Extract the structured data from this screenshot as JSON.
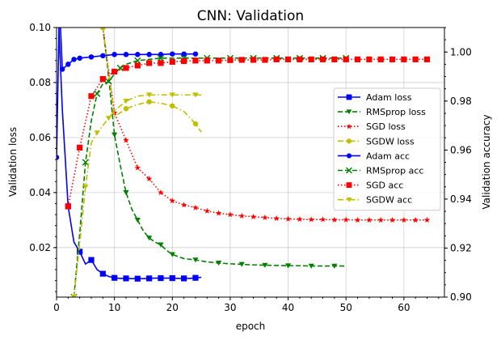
{
  "chart_data": {
    "type": "line",
    "title": "CNN: Validation",
    "xlabel": "epoch",
    "ylabel_left": "Validation loss",
    "ylabel_right": "Validation accuracy",
    "xlim": [
      0,
      67
    ],
    "ylim_left": [
      0.002,
      0.1
    ],
    "ylim_right": [
      0.9,
      1.01
    ],
    "xticks": [
      0,
      10,
      20,
      30,
      40,
      50,
      60
    ],
    "yticks_left": [
      0.02,
      0.04,
      0.06,
      0.08,
      0.1
    ],
    "yticks_left_labels": [
      "0.02",
      "0.04",
      "0.06",
      "0.08",
      "0.10"
    ],
    "yticks_right": [
      0.9,
      0.92,
      0.94,
      0.96,
      0.98,
      1.0
    ],
    "yticks_right_labels": [
      "0.90",
      "0.92",
      "0.94",
      "0.96",
      "0.98",
      "1.00"
    ],
    "grid": true,
    "legend_position": "center-right",
    "series": [
      {
        "name": "Adam loss",
        "axis": "left",
        "color": "#0000ff",
        "dash": "solid",
        "marker": "square",
        "x": [
          0,
          1,
          2,
          3,
          4,
          5,
          6,
          7,
          8,
          9,
          10,
          11,
          12,
          13,
          14,
          15,
          16,
          17,
          18,
          19,
          20,
          21,
          22,
          23,
          24,
          25
        ],
        "y": [
          0.12,
          0.07,
          0.035,
          0.022,
          0.0185,
          0.014,
          0.0155,
          0.012,
          0.0105,
          0.0095,
          0.009,
          0.0088,
          0.0088,
          0.0087,
          0.0087,
          0.0087,
          0.0088,
          0.0089,
          0.0089,
          0.0089,
          0.0089,
          0.0088,
          0.0088,
          0.0088,
          0.009,
          0.0092
        ],
        "marker_every": 2
      },
      {
        "name": "RMSprop loss",
        "axis": "left",
        "color": "#008000",
        "dash": "dashed",
        "marker": "triangle-down",
        "x": [
          8,
          9,
          10,
          11,
          12,
          13,
          14,
          15,
          16,
          17,
          18,
          19,
          20,
          22,
          24,
          26,
          28,
          30,
          32,
          34,
          36,
          38,
          40,
          42,
          44,
          46,
          48,
          50
        ],
        "y": [
          0.1,
          0.082,
          0.061,
          0.05,
          0.04,
          0.034,
          0.03,
          0.026,
          0.0235,
          0.022,
          0.021,
          0.019,
          0.0175,
          0.016,
          0.0155,
          0.0148,
          0.0144,
          0.0141,
          0.0139,
          0.0137,
          0.0136,
          0.0135,
          0.0134,
          0.0134,
          0.0133,
          0.0133,
          0.0133,
          0.0133
        ],
        "marker_every": 2
      },
      {
        "name": "SGD loss",
        "axis": "left",
        "color": "#ff0000",
        "dash": "dotted",
        "marker": "star",
        "x": [
          8,
          10,
          12,
          14,
          16,
          18,
          20,
          22,
          24,
          26,
          28,
          30,
          32,
          34,
          36,
          38,
          40,
          42,
          44,
          46,
          48,
          50,
          52,
          54,
          56,
          58,
          60,
          62,
          64
        ],
        "y": [
          0.1,
          0.069,
          0.059,
          0.049,
          0.045,
          0.04,
          0.037,
          0.0355,
          0.0345,
          0.0333,
          0.0325,
          0.032,
          0.0315,
          0.0312,
          0.0309,
          0.0306,
          0.0304,
          0.0303,
          0.0302,
          0.0302,
          0.0301,
          0.0301,
          0.03,
          0.03,
          0.03,
          0.03,
          0.03,
          0.03,
          0.03
        ],
        "marker_every": 1
      },
      {
        "name": "SGDW loss",
        "axis": "left",
        "color": "#bfbf00",
        "dash": "dashdot",
        "marker": "circle",
        "x": [
          8,
          10,
          12,
          14,
          16,
          18,
          20,
          22,
          24,
          25
        ],
        "y": [
          0.1,
          0.0675,
          0.0705,
          0.072,
          0.073,
          0.0725,
          0.0715,
          0.0695,
          0.065,
          0.062
        ],
        "marker_every": 2
      },
      {
        "name": "Adam acc",
        "axis": "right",
        "color": "#0000ff",
        "dash": "solid",
        "marker": "circle",
        "x": [
          0,
          0.5,
          1,
          2,
          3,
          4,
          6,
          8,
          10,
          12,
          14,
          16,
          18,
          20,
          22,
          24
        ],
        "y": [
          0.957,
          1.02,
          0.993,
          0.995,
          0.997,
          0.9975,
          0.998,
          0.9985,
          0.999,
          0.999,
          0.999,
          0.999,
          0.999,
          0.9992,
          0.9992,
          0.9992
        ],
        "marker_every": 1
      },
      {
        "name": "RMSprop acc",
        "axis": "right",
        "color": "#008000",
        "dash": "dashed",
        "marker": "x",
        "x": [
          3,
          4,
          5,
          6,
          7,
          8,
          9,
          10,
          11,
          12,
          14,
          16,
          18,
          20,
          22,
          24,
          26,
          28,
          30,
          32,
          34,
          36,
          38,
          40,
          42,
          44,
          46,
          48,
          50
        ],
        "y": [
          0.9,
          0.926,
          0.955,
          0.972,
          0.983,
          0.987,
          0.988,
          0.991,
          0.9935,
          0.995,
          0.9965,
          0.997,
          0.9975,
          0.9975,
          0.9975,
          0.9975,
          0.9975,
          0.9975,
          0.9975,
          0.9975,
          0.9975,
          0.9975,
          0.9975,
          0.9975,
          0.9975,
          0.9975,
          0.9975,
          0.9975,
          0.9975
        ],
        "marker_every": 2
      },
      {
        "name": "SGD acc",
        "axis": "right",
        "color": "#ff0000",
        "dash": "dotted",
        "marker": "square",
        "x": [
          2,
          4,
          6,
          8,
          10,
          12,
          14,
          16,
          18,
          20,
          22,
          24,
          26,
          28,
          30,
          32,
          34,
          36,
          38,
          40,
          42,
          44,
          46,
          48,
          50,
          52,
          54,
          56,
          58,
          60,
          62,
          64
        ],
        "y": [
          0.937,
          0.961,
          0.982,
          0.989,
          0.992,
          0.9935,
          0.9945,
          0.9955,
          0.9955,
          0.996,
          0.9963,
          0.9965,
          0.9965,
          0.9965,
          0.9967,
          0.9968,
          0.9968,
          0.9968,
          0.997,
          0.997,
          0.997,
          0.997,
          0.997,
          0.997,
          0.997,
          0.997,
          0.997,
          0.997,
          0.997,
          0.997,
          0.997,
          0.997
        ],
        "marker_every": 1
      },
      {
        "name": "SGDW acc",
        "axis": "right",
        "color": "#bfbf00",
        "dash": "dashdot",
        "marker": "triangle-down",
        "x": [
          3,
          4,
          5,
          6,
          7,
          8,
          9,
          10,
          12,
          14,
          16,
          18,
          20,
          22,
          24,
          25
        ],
        "y": [
          0.9,
          0.922,
          0.945,
          0.963,
          0.967,
          0.97,
          0.973,
          0.976,
          0.98,
          0.982,
          0.9825,
          0.9825,
          0.9825,
          0.9825,
          0.9825,
          0.9825
        ],
        "marker_every": 2
      }
    ]
  }
}
